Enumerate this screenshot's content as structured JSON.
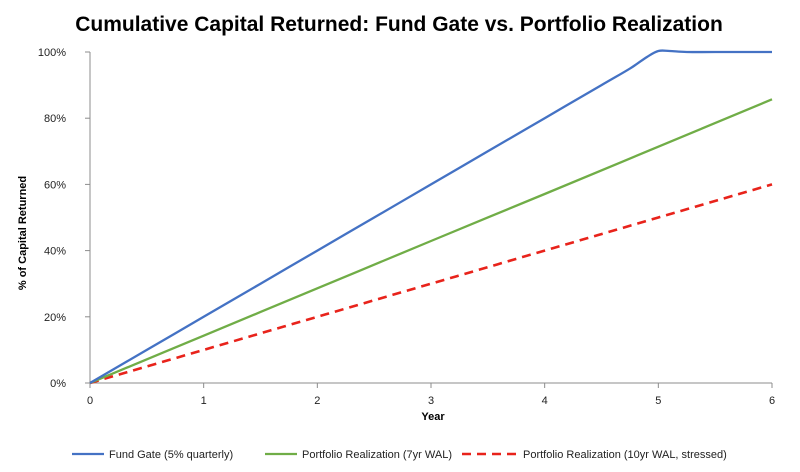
{
  "chart_data": {
    "type": "line",
    "title": "Cumulative Capital Returned: Fund Gate vs. Portfolio Realization",
    "xlabel": "Year",
    "ylabel": "% of Capital Returned",
    "xlim": [
      0,
      6
    ],
    "ylim": [
      0,
      100
    ],
    "x_ticks": [
      "0",
      "1",
      "2",
      "3",
      "4",
      "5",
      "6"
    ],
    "y_ticks": [
      "0%",
      "20%",
      "40%",
      "60%",
      "80%",
      "100%"
    ],
    "grid": false,
    "legend_position": "bottom",
    "series": [
      {
        "name": "Fund Gate (5% quarterly)",
        "color": "#4472C4",
        "dash": "solid",
        "x": [
          0,
          0.5,
          1,
          1.5,
          2,
          2.5,
          3,
          3.5,
          4,
          4.5,
          4.75,
          4.9,
          5,
          5.1,
          5.25,
          5.5,
          6
        ],
        "y": [
          0,
          10,
          20,
          30,
          40,
          50,
          60,
          70,
          80,
          90,
          95,
          98.5,
          100.3,
          100.3,
          100,
          100,
          100
        ]
      },
      {
        "name": "Portfolio Realization (7yr WAL)",
        "color": "#70AD47",
        "dash": "solid",
        "x": [
          0,
          1,
          2,
          3,
          4,
          5,
          6
        ],
        "y": [
          0,
          14.3,
          28.6,
          42.9,
          57.1,
          71.4,
          85.7
        ]
      },
      {
        "name": "Portfolio Realization (10yr WAL, stressed)",
        "color": "#E8231B",
        "dash": "dashed",
        "x": [
          0,
          1,
          2,
          3,
          4,
          5,
          6
        ],
        "y": [
          0,
          10,
          20,
          30,
          40,
          50,
          60
        ]
      }
    ]
  }
}
